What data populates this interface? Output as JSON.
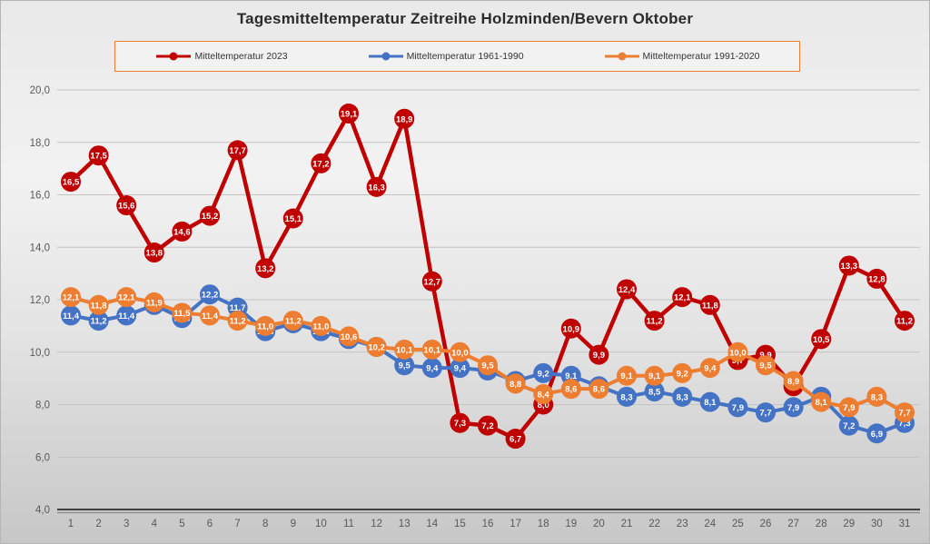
{
  "title": "Tagesmitteltemperatur Zeitreihe Holzminden/Bevern Oktober",
  "decimal_separator": ",",
  "axis": {
    "y_tick_labels": [
      "4,0",
      "6,0",
      "8,0",
      "10,0",
      "12,0",
      "14,0",
      "16,0",
      "18,0",
      "20,0"
    ],
    "x_tick_labels": [
      "1",
      "2",
      "3",
      "4",
      "5",
      "6",
      "7",
      "8",
      "9",
      "10",
      "11",
      "12",
      "13",
      "14",
      "15",
      "16",
      "17",
      "18",
      "19",
      "20",
      "21",
      "22",
      "23",
      "24",
      "25",
      "26",
      "27",
      "28",
      "29",
      "30",
      "31"
    ]
  },
  "colors": {
    "red": "#C00000",
    "blue": "#4472C4",
    "orange": "#ED7D31",
    "grid": "#c3c3c3",
    "axis_line": "#3f3f3f",
    "axis_text": "#595959",
    "legend_border": "#ED7D31",
    "title_text": "#2b2b2b"
  },
  "chart_data": {
    "type": "line",
    "title": "Tagesmitteltemperatur Zeitreihe Holzminden/Bevern Oktober",
    "xlabel": "",
    "ylabel": "",
    "ylim": [
      4.0,
      20.0
    ],
    "ytick_step": 2.0,
    "grid": true,
    "legend_position": "top",
    "categories": [
      1,
      2,
      3,
      4,
      5,
      6,
      7,
      8,
      9,
      10,
      11,
      12,
      13,
      14,
      15,
      16,
      17,
      18,
      19,
      20,
      21,
      22,
      23,
      24,
      25,
      26,
      27,
      28,
      29,
      30,
      31
    ],
    "series": [
      {
        "name": "Mitteltemperatur 2023",
        "color": "#C00000",
        "values": [
          16.5,
          17.5,
          15.6,
          13.8,
          14.6,
          15.2,
          17.7,
          13.2,
          15.1,
          17.2,
          19.1,
          16.3,
          18.9,
          12.7,
          7.3,
          7.2,
          6.7,
          8.0,
          10.9,
          9.9,
          12.4,
          11.2,
          12.1,
          11.8,
          9.7,
          9.9,
          8.7,
          10.5,
          13.3,
          12.8,
          11.2
        ]
      },
      {
        "name": "Mitteltemperatur 1961-1990",
        "color": "#4472C4",
        "values": [
          11.4,
          11.2,
          11.4,
          11.8,
          11.3,
          12.2,
          11.7,
          10.8,
          11.1,
          10.8,
          10.5,
          10.2,
          9.5,
          9.4,
          9.4,
          9.3,
          8.9,
          9.2,
          9.1,
          8.7,
          8.3,
          8.5,
          8.3,
          8.1,
          7.9,
          7.7,
          7.9,
          8.3,
          7.2,
          6.9,
          7.3
        ]
      },
      {
        "name": "Mitteltemperatur 1991-2020",
        "color": "#ED7D31",
        "values": [
          12.1,
          11.8,
          12.1,
          11.9,
          11.5,
          11.4,
          11.2,
          11.0,
          11.2,
          11.0,
          10.6,
          10.2,
          10.1,
          10.1,
          10.0,
          9.5,
          8.8,
          8.4,
          8.6,
          8.6,
          9.1,
          9.1,
          9.2,
          9.4,
          10.0,
          9.5,
          8.9,
          8.1,
          7.9,
          8.3,
          7.7
        ]
      }
    ]
  }
}
